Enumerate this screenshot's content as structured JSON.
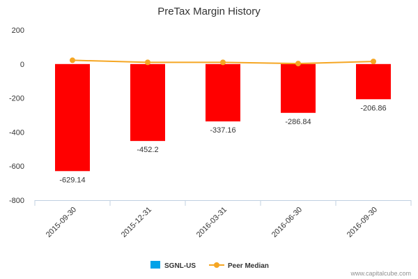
{
  "chart_data": {
    "type": "bar",
    "title": "PreTax Margin History",
    "categories": [
      "2015-09-30",
      "2015-12-31",
      "2016-03-31",
      "2016-06-30",
      "2016-09-30"
    ],
    "series": [
      {
        "name": "SGNL-US",
        "type": "bar",
        "values": [
          -629.14,
          -452.2,
          -337.16,
          -286.84,
          -206.86
        ],
        "data_labels": [
          "-629.14",
          "-452.2",
          "-337.16",
          "-286.84",
          "-206.86"
        ],
        "legend_color": "#00a2e8",
        "bar_color": "#ff0000"
      },
      {
        "name": "Peer Median",
        "type": "line",
        "values": [
          22,
          10,
          10,
          3,
          15
        ],
        "color": "#f5a623"
      }
    ],
    "ylim": [
      -800,
      200
    ],
    "yticks": [
      200,
      0,
      -200,
      -400,
      -600,
      -800
    ],
    "ytick_labels": [
      "200",
      "0",
      "-200",
      "-400",
      "-600",
      "-800"
    ],
    "legend_position": "bottom-center",
    "grid": false
  },
  "credit": "www.capitalcube.com"
}
